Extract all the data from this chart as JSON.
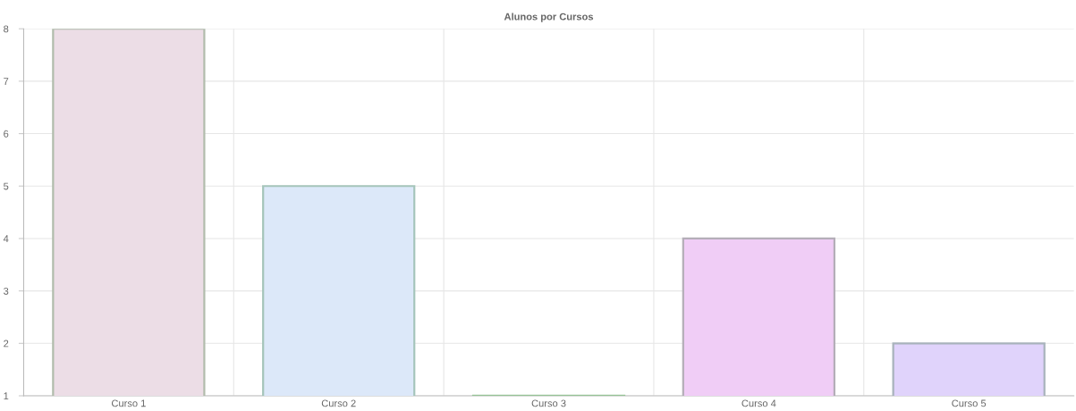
{
  "chart_data": {
    "type": "bar",
    "title": "Alunos por Cursos",
    "categories": [
      "Curso 1",
      "Curso 2",
      "Curso 3",
      "Curso 4",
      "Curso 5"
    ],
    "values": [
      8,
      5,
      1,
      4,
      2
    ],
    "colors": [
      "#ecdde6",
      "#dce8f9",
      "#c8e6c8",
      "#f0cdf6",
      "#e0d3fb"
    ],
    "ylim": [
      1,
      8
    ],
    "yticks": [
      1,
      2,
      3,
      4,
      5,
      6,
      7,
      8
    ],
    "grid": true,
    "legend": false
  }
}
